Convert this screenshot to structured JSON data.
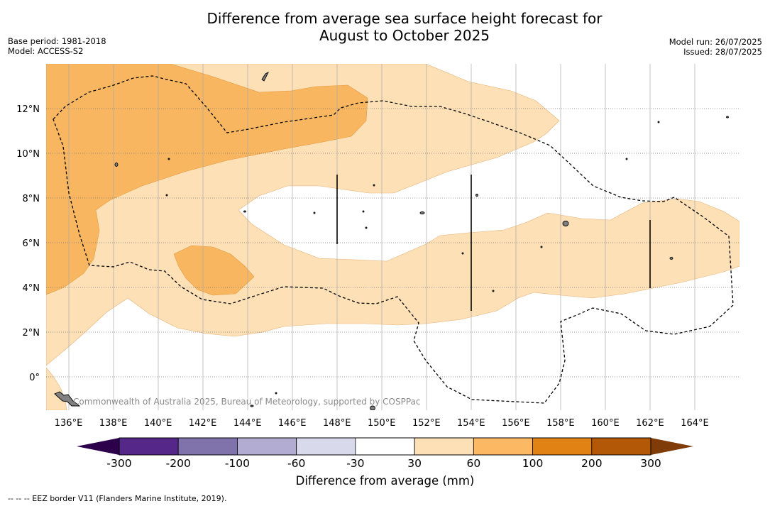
{
  "title_line1": "Difference from average sea surface height forecast for",
  "title_line2": "August to October 2025",
  "base_period": "Base period: 1981-2018",
  "model": "Model: ACCESS-S2",
  "model_run": "Model run: 26/07/2025",
  "issued": "Issued: 28/07/2025",
  "credit": "Commonwealth of Australia 2025, Bureau of Meteorology, supported by COSPPac",
  "footnote": "--  --  -- EEZ border V11 (Flanders Marine Institute, 2019).",
  "map": {
    "lon_range": [
      135,
      166
    ],
    "lat_range": [
      -1.5,
      14
    ],
    "lon_ticks": [
      {
        "value": 136,
        "label": "136°E"
      },
      {
        "value": 138,
        "label": "138°E"
      },
      {
        "value": 140,
        "label": "140°E"
      },
      {
        "value": 142,
        "label": "142°E"
      },
      {
        "value": 144,
        "label": "144°E"
      },
      {
        "value": 146,
        "label": "146°E"
      },
      {
        "value": 148,
        "label": "148°E"
      },
      {
        "value": 150,
        "label": "150°E"
      },
      {
        "value": 152,
        "label": "152°E"
      },
      {
        "value": 154,
        "label": "154°E"
      },
      {
        "value": 156,
        "label": "156°E"
      },
      {
        "value": 158,
        "label": "158°E"
      },
      {
        "value": 160,
        "label": "160°E"
      },
      {
        "value": 162,
        "label": "162°E"
      },
      {
        "value": 164,
        "label": "164°E"
      }
    ],
    "lat_ticks": [
      {
        "value": 0,
        "label": "0°"
      },
      {
        "value": 2,
        "label": "2°N"
      },
      {
        "value": 4,
        "label": "4°N"
      },
      {
        "value": 6,
        "label": "6°N"
      },
      {
        "value": 8,
        "label": "8°N"
      },
      {
        "value": 10,
        "label": "10°N"
      },
      {
        "value": 12,
        "label": "12°N"
      }
    ],
    "fill_colors": {
      "c30_60": "#fde0b5",
      "c60_100": "#f9b660",
      "ocean": "#ffffff"
    }
  },
  "colorbar": {
    "title": "Difference from average (mm)",
    "ticks": [
      "-300",
      "-200",
      "-100",
      "-60",
      "-30",
      "30",
      "60",
      "100",
      "200",
      "300"
    ],
    "colors": [
      "#542788",
      "#8073ac",
      "#b2abd2",
      "#d8daeb",
      "#ffffff",
      "#fee0b6",
      "#fdb863",
      "#e08214",
      "#b35806"
    ],
    "under_color": "#2d004b",
    "over_color": "#7f3b08"
  }
}
